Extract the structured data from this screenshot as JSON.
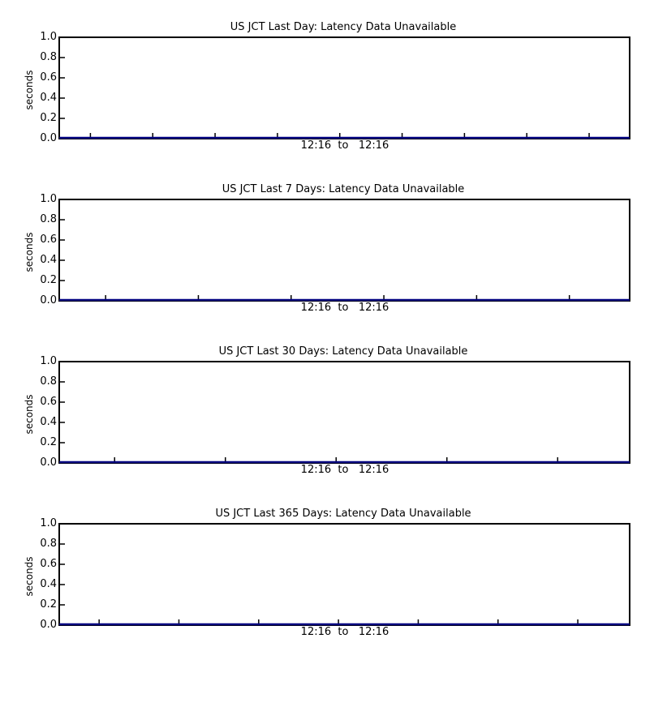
{
  "chart_data": [
    {
      "type": "line",
      "title": "US  JCT  Last  Day:  Latency  Data  Unavailable",
      "ylabel": "seconds",
      "ylim": [
        0,
        1.0
      ],
      "y_ticks": [
        "0.0",
        "0.2",
        "0.4",
        "0.6",
        "0.8",
        "1.0"
      ],
      "x_range_label": "12:16  to   12:16",
      "minor_x_ticks": 9,
      "series": [],
      "colors": {
        "baseline": "#000080",
        "axes": "#000000"
      }
    },
    {
      "type": "line",
      "title": "US  JCT  Last  7  Days:  Latency  Data  Unavailable",
      "ylabel": "seconds",
      "ylim": [
        0,
        1.0
      ],
      "y_ticks": [
        "0.0",
        "0.2",
        "0.4",
        "0.6",
        "0.8",
        "1.0"
      ],
      "x_range_label": "12:16  to   12:16",
      "minor_x_ticks": 6,
      "series": [],
      "colors": {
        "baseline": "#000080",
        "axes": "#000000"
      }
    },
    {
      "type": "line",
      "title": "US  JCT  Last  30  Days:  Latency  Data  Unavailable",
      "ylabel": "seconds",
      "ylim": [
        0,
        1.0
      ],
      "y_ticks": [
        "0.0",
        "0.2",
        "0.4",
        "0.6",
        "0.8",
        "1.0"
      ],
      "x_range_label": "12:16  to   12:16",
      "minor_x_ticks": 5,
      "series": [],
      "colors": {
        "baseline": "#000080",
        "axes": "#000000"
      }
    },
    {
      "type": "line",
      "title": "US  JCT  Last  365  Days:  Latency  Data  Unavailable",
      "ylabel": "seconds",
      "ylim": [
        0,
        1.0
      ],
      "y_ticks": [
        "0.0",
        "0.2",
        "0.4",
        "0.6",
        "0.8",
        "1.0"
      ],
      "x_range_label": "12:16  to   12:16",
      "minor_x_ticks": 7,
      "series": [],
      "colors": {
        "baseline": "#000080",
        "axes": "#000000"
      }
    }
  ]
}
